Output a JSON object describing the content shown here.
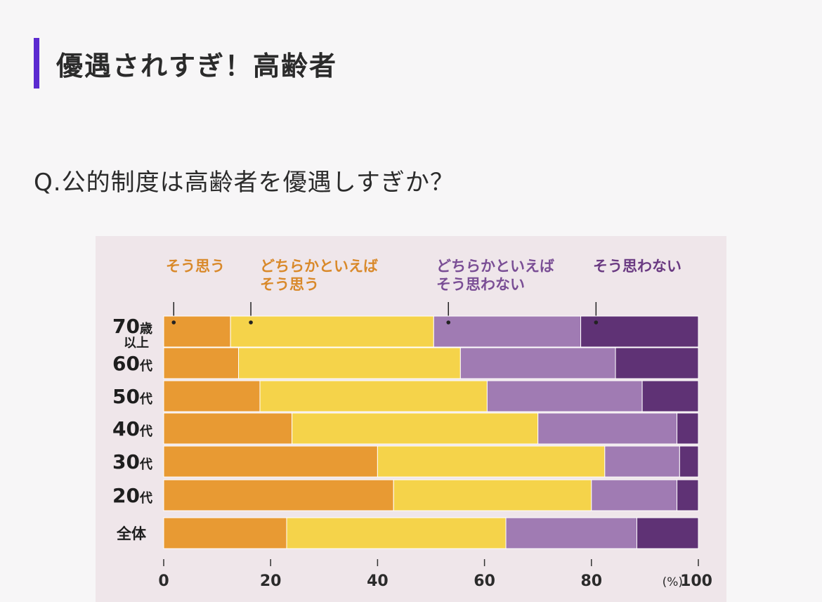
{
  "page": {
    "title": "優遇されすぎ！高齢者",
    "question": "Q.公的制度は高齢者を優遇しすぎか？"
  },
  "colors": {
    "accent": "#5b2ad0",
    "agree": "#e89a33",
    "somewhat_agree": "#f5d34a",
    "somewhat_disagree": "#a07bb3",
    "disagree": "#5f3275"
  },
  "chart_data": {
    "type": "bar",
    "orientation": "horizontal",
    "stacked": true,
    "categories": [
      {
        "main": "70",
        "suffix": "歳",
        "line2": "以上"
      },
      {
        "main": "60",
        "suffix": "代"
      },
      {
        "main": "50",
        "suffix": "代"
      },
      {
        "main": "40",
        "suffix": "代"
      },
      {
        "main": "30",
        "suffix": "代"
      },
      {
        "main": "20",
        "suffix": "代"
      },
      {
        "main": "",
        "suffix": "全体"
      }
    ],
    "series": [
      {
        "name": "そう思う",
        "lines": [
          "そう思う"
        ],
        "color": "#e89a33",
        "values": [
          12.5,
          14,
          18,
          24,
          40,
          43,
          23
        ]
      },
      {
        "name": "どちらかといえばそう思う",
        "lines": [
          "どちらかといえば",
          "そう思う"
        ],
        "color": "#f5d34a",
        "values": [
          38,
          41.5,
          42.5,
          46,
          42.5,
          37,
          41
        ]
      },
      {
        "name": "どちらかといえばそう思わない",
        "lines": [
          "どちらかといえば",
          "そう思わない"
        ],
        "color": "#a07bb3",
        "values": [
          27.5,
          29,
          29,
          26,
          14,
          16,
          24.5
        ]
      },
      {
        "name": "そう思わない",
        "lines": [
          "そう思わない"
        ],
        "color": "#5f3275",
        "values": [
          22,
          15.5,
          10.5,
          4,
          3.5,
          4,
          11.5
        ]
      }
    ],
    "legend_placement": "top",
    "xlim": [
      0,
      100
    ],
    "xticks": [
      "0",
      "20",
      "40",
      "60",
      "80",
      "100"
    ],
    "x_unit": "(%)"
  }
}
